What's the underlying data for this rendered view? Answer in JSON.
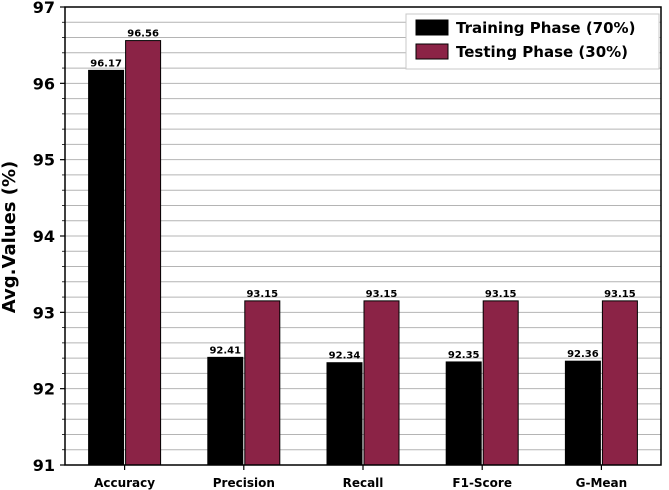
{
  "chart_data": {
    "type": "bar",
    "title": "",
    "xlabel": "",
    "ylabel": "Avg.Values (%)",
    "ylim": [
      91,
      97
    ],
    "y_ticks": [
      91,
      92,
      93,
      94,
      95,
      96,
      97
    ],
    "categories": [
      "Accuracy",
      "Precision",
      "Recall",
      "F1-Score",
      "G-Mean"
    ],
    "series": [
      {
        "name": "Training Phase (70%)",
        "color": "#000000",
        "values": [
          96.17,
          92.41,
          92.34,
          92.35,
          92.36
        ]
      },
      {
        "name": "Testing Phase (30%)",
        "color": "#8b2346",
        "values": [
          96.56,
          93.15,
          93.15,
          93.15,
          93.15
        ]
      }
    ],
    "grid": "horizontal",
    "legend_position": "top-right"
  }
}
